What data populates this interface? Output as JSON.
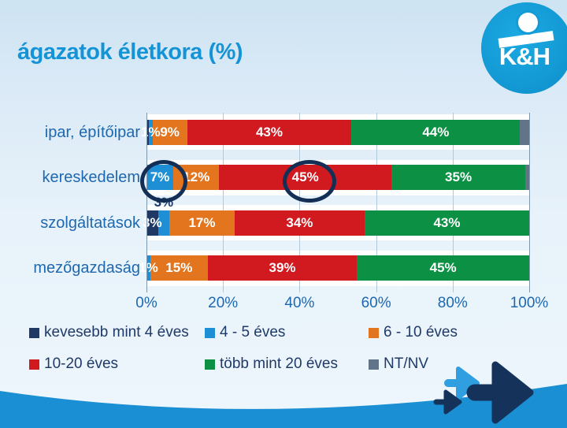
{
  "title": "ágazatok életkora (%)",
  "logo": {
    "text": "K&H"
  },
  "chart_data": {
    "type": "bar",
    "orientation": "horizontal",
    "stacked": true,
    "unit": "%",
    "title": "ágazatok életkora (%)",
    "categories": [
      "ipar, építőipar",
      "kereskedelem",
      "szolgáltatások",
      "mezőgazdaság"
    ],
    "series": [
      {
        "name": "kevesebb mint 4 éves",
        "color": "#1f3864",
        "values": [
          0.6,
          0,
          3,
          0
        ],
        "labels": [
          "",
          "",
          "3%",
          ""
        ]
      },
      {
        "name": "4 - 5 éves",
        "color": "#1e8fd4",
        "values": [
          1,
          7,
          3,
          1
        ],
        "labels": [
          "1%",
          "7%",
          "",
          "1%"
        ]
      },
      {
        "name": "6 - 10 éves",
        "color": "#e2751d",
        "values": [
          9,
          12,
          17,
          15
        ],
        "labels": [
          "9%",
          "12%",
          "17%",
          "15%"
        ]
      },
      {
        "name": "10-20 éves",
        "color": "#d11920",
        "values": [
          43,
          45,
          34,
          39
        ],
        "labels": [
          "43%",
          "45%",
          "34%",
          "39%"
        ]
      },
      {
        "name": "több mint 20 éves",
        "color": "#0c9144",
        "values": [
          44,
          35,
          43,
          45
        ],
        "labels": [
          "44%",
          "35%",
          "43%",
          "45%"
        ]
      },
      {
        "name": "NT/NV",
        "color": "#627488",
        "values": [
          2.4,
          1,
          0,
          0
        ],
        "labels": [
          "",
          "",
          "",
          ""
        ]
      }
    ],
    "x_ticks": [
      "0%",
      "20%",
      "40%",
      "60%",
      "80%",
      "100%"
    ],
    "xlim": [
      0,
      100
    ],
    "grid": true,
    "legend_position": "bottom",
    "annotations": {
      "callout_label": {
        "text": "3%",
        "category": "szolgáltatások",
        "series": "4 - 5 éves"
      },
      "emphasis_circles": [
        {
          "category": "kereskedelem",
          "series": "4 - 5 éves",
          "label": "7%"
        },
        {
          "category": "kereskedelem",
          "series": "10-20 éves",
          "label": "45%"
        }
      ]
    }
  },
  "colors": {
    "title": "#1494d6",
    "category_label": "#1e68b0",
    "tick_label": "#1e68b0",
    "legend_text": "#1f3a68",
    "band": "#ffffff",
    "gridline": "#b3c8d6",
    "axis_line": "#7f97ab",
    "wave": "#1a8fd3",
    "logo_blue": "#149bd6",
    "arrow_light": "#2f9fe0",
    "arrow_dark": "#15335a",
    "circle_stroke": "#132f55"
  }
}
